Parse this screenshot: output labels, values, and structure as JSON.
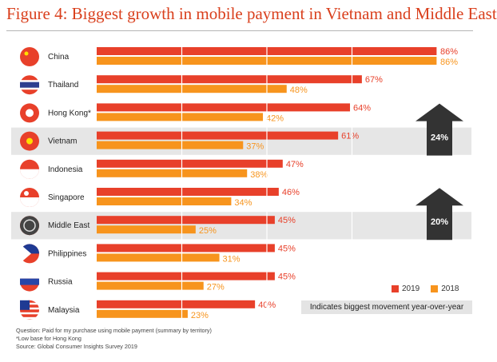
{
  "title": "Figure 4: Biggest growth in mobile payment in Vietnam and Middle East",
  "legend": [
    {
      "label": "2019",
      "color": "#e8402a"
    },
    {
      "label": "2018",
      "color": "#f7941d"
    }
  ],
  "movement_note": "Indicates biggest movement year-over-year",
  "notes": [
    "Question: Paid for my purchase using mobile payment (summary by territory)",
    "*Low base for Hong Kong",
    "Source: Global Consumer Insights Survey 2019"
  ],
  "colors": {
    "bar_2019": "#e8402a",
    "bar_2018": "#f7941d",
    "highlight": "#e6e6e6",
    "arrow": "#333333"
  },
  "chart_data": {
    "type": "bar",
    "orientation": "horizontal",
    "categories": [
      "China",
      "Thailand",
      "Hong Kong*",
      "Vietnam",
      "Indonesia",
      "Singapore",
      "Middle East",
      "Philippines",
      "Russia",
      "Malaysia"
    ],
    "series": [
      {
        "name": "2019",
        "values": [
          86,
          67,
          64,
          61,
          47,
          46,
          45,
          45,
          45,
          40
        ]
      },
      {
        "name": "2018",
        "values": [
          86,
          48,
          42,
          37,
          38,
          34,
          25,
          31,
          27,
          23
        ]
      }
    ],
    "value_labels_2019": [
      "86%",
      "67%",
      "64%",
      "61%",
      "47%",
      "46%",
      "45%",
      "45%",
      "45%",
      "40%"
    ],
    "value_labels_2018": [
      "86%",
      "48%",
      "42%",
      "37%",
      "38%",
      "34%",
      "25%",
      "31%",
      "27%",
      "23%"
    ],
    "highlighted": [
      "Vietnam",
      "Middle East"
    ],
    "annotations": [
      {
        "category": "Vietnam",
        "label": "24%",
        "icon": "up-arrow-icon"
      },
      {
        "category": "Middle East",
        "label": "20%",
        "icon": "up-arrow-icon"
      }
    ],
    "flags": [
      "china-flag-icon",
      "thailand-flag-icon",
      "hong-kong-flag-icon",
      "vietnam-flag-icon",
      "indonesia-flag-icon",
      "singapore-flag-icon",
      "middle-east-globe-icon",
      "philippines-flag-icon",
      "russia-flag-icon",
      "malaysia-flag-icon"
    ],
    "xlim": [
      0,
      86
    ],
    "grid": true,
    "legend_position": "bottom-right"
  }
}
